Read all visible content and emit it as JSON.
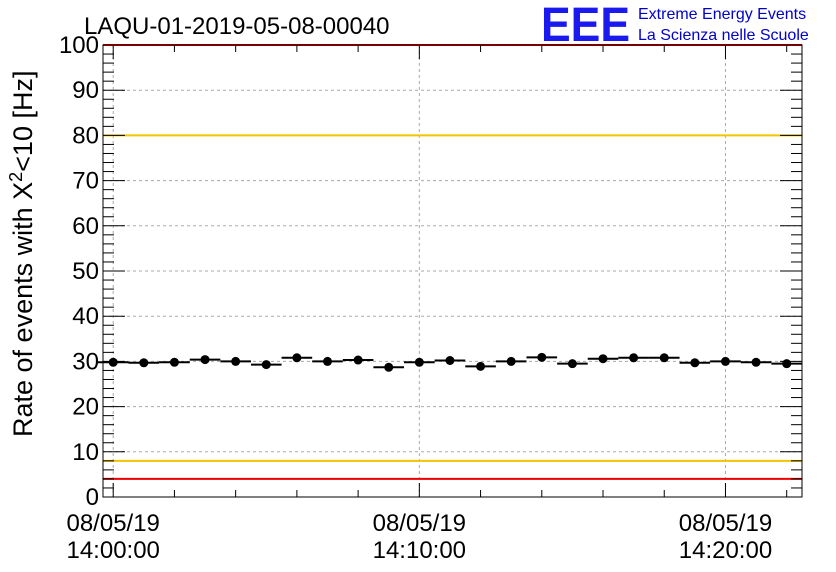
{
  "chart_data": {
    "type": "scatter",
    "title": "LAQU-01-2019-05-08-00040",
    "ylabel": {
      "prefix": "Rate of events with X",
      "sup": "2",
      "suffix": "<10 [Hz]"
    },
    "xlabel": "",
    "ylim": [
      0,
      100
    ],
    "yticks": [
      0,
      10,
      20,
      30,
      40,
      50,
      60,
      70,
      80,
      90,
      100
    ],
    "xlim": [
      "08/05/19 13:59:40",
      "08/05/19 14:22:30"
    ],
    "xticks": [
      {
        "x": "08/05/19 14:00:00",
        "date": "08/05/19",
        "time": "14:00:00"
      },
      {
        "x": "08/05/19 14:10:00",
        "date": "08/05/19",
        "time": "14:10:00"
      },
      {
        "x": "08/05/19 14:20:00",
        "date": "08/05/19",
        "time": "14:20:00"
      }
    ],
    "grid": true,
    "reference_lines": [
      {
        "y": 80,
        "color": "#f2c500"
      },
      {
        "y": 8,
        "color": "#f2c500"
      },
      {
        "y": 100,
        "color": "#ee0000"
      },
      {
        "y": 4,
        "color": "#ee0000"
      }
    ],
    "series": [
      {
        "x": [
          "14:00:00",
          "14:01:00",
          "14:02:00",
          "14:03:00",
          "14:04:00",
          "14:05:00",
          "14:06:00",
          "14:07:00",
          "14:08:00",
          "14:09:00",
          "14:10:00",
          "14:11:00",
          "14:12:00",
          "14:13:00",
          "14:14:00",
          "14:15:00",
          "14:16:00",
          "14:17:00",
          "14:18:00",
          "14:19:00",
          "14:20:00",
          "14:21:00",
          "14:22:00"
        ],
        "values": [
          29.8,
          29.7,
          29.8,
          30.4,
          30.0,
          29.3,
          30.8,
          30.0,
          30.3,
          28.7,
          29.8,
          30.2,
          28.9,
          30.0,
          30.9,
          29.5,
          30.6,
          30.8,
          30.8,
          29.7,
          30.0,
          29.8,
          29.5
        ],
        "bin_half_width_min": 0.5,
        "color": "#000000"
      }
    ],
    "logo": {
      "mark": "EEE",
      "line1": "Extreme Energy Events",
      "line2": "La Scienza nelle Scuole",
      "color": "#1a1aee"
    }
  }
}
